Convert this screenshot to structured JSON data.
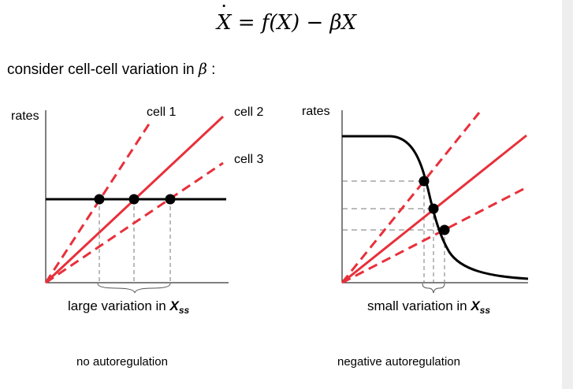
{
  "equation": {
    "lhs": "X",
    "rhs": "= f(X) − βX"
  },
  "heading": {
    "text": "consider cell-cell variation in ",
    "symbol": "β",
    "suffix": " :"
  },
  "left_panel": {
    "ylabel": "rates",
    "line_labels": [
      "cell 1",
      "cell 2",
      "cell 3"
    ],
    "caption_text": "large variation in ",
    "caption_var": "X",
    "caption_sub": "ss",
    "footer": "no autoregulation"
  },
  "right_panel": {
    "ylabel": "rates",
    "caption_text": "small variation in ",
    "caption_var": "X",
    "caption_sub": "ss",
    "footer": "negative  autoregulation"
  },
  "colors": {
    "removal_lines": "#e8303a",
    "production": "#000000",
    "guides": "#777777"
  }
}
